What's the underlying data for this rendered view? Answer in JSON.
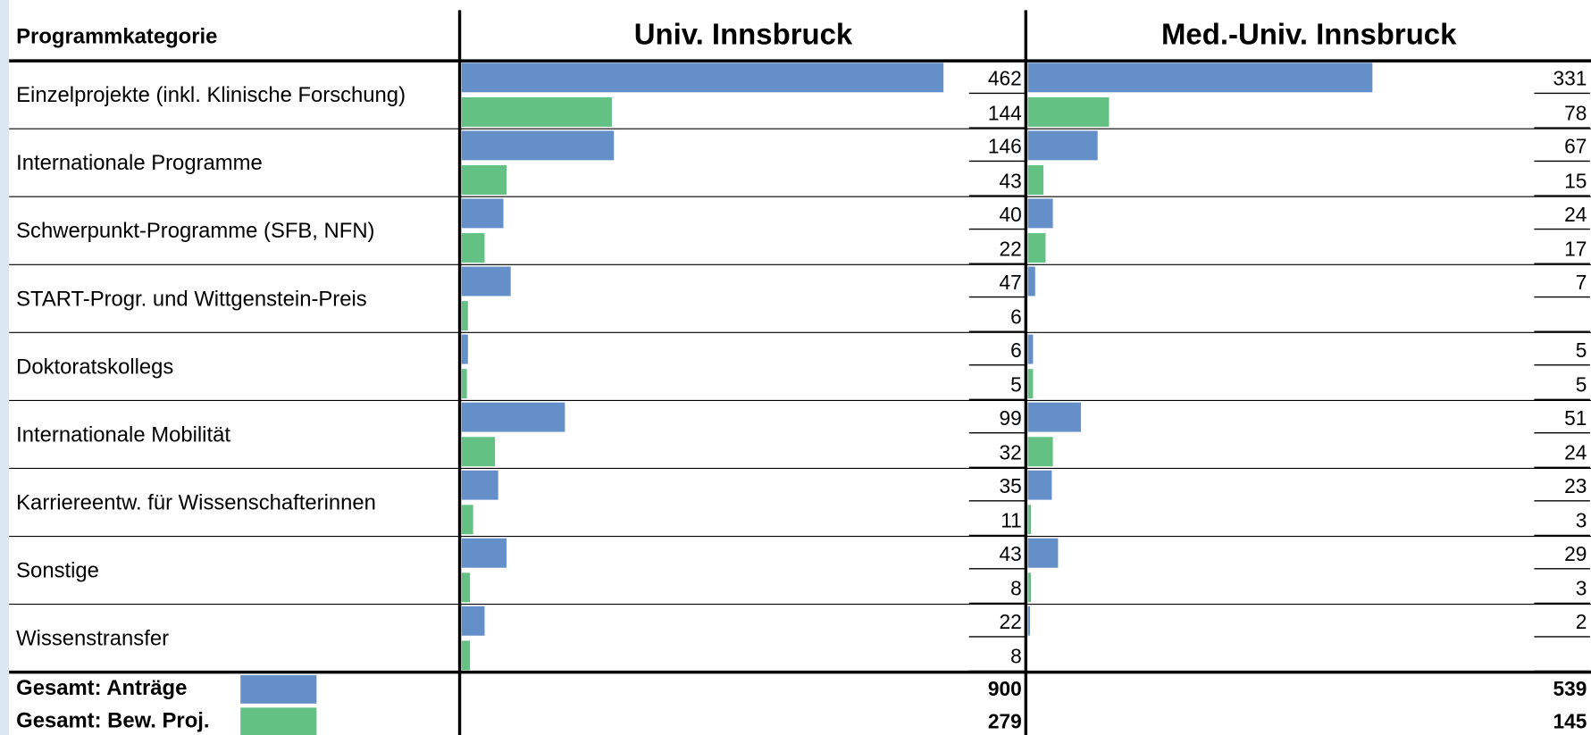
{
  "chart_data": {
    "type": "bar",
    "category_header": "Programmkategorie",
    "categories": [
      "Einzelprojekte (inkl. Klinische Forschung)",
      "Internationale Programme",
      "Schwerpunkt-Programme (SFB, NFN)",
      "START-Progr. und Wittgenstein-Preis",
      "Doktoratskollegs",
      "Internationale Mobilität",
      "Karriereentw. für Wissenschafterinnen",
      "Sonstige",
      "Wissenstransfer"
    ],
    "legend": [
      {
        "name": "Gesamt: Anträge",
        "color": "#658fc9"
      },
      {
        "name": "Gesamt: Bew. Proj.",
        "color": "#63c283"
      }
    ],
    "panels": [
      {
        "title": "Univ. Innsbruck",
        "xlim": [
          0,
          540
        ],
        "series": [
          {
            "values": [
              462,
              146,
              40,
              47,
              6,
              99,
              35,
              43,
              22
            ]
          },
          {
            "values": [
              144,
              43,
              22,
              6,
              5,
              32,
              11,
              8,
              8
            ]
          }
        ],
        "totals": [
          900,
          279
        ]
      },
      {
        "title": "Med.-Univ. Innsbruck",
        "xlim": [
          0,
          540
        ],
        "series": [
          {
            "values": [
              331,
              67,
              24,
              7,
              5,
              51,
              23,
              29,
              2
            ]
          },
          {
            "values": [
              78,
              15,
              17,
              null,
              5,
              24,
              3,
              3,
              null
            ]
          }
        ],
        "totals": [
          539,
          145
        ]
      }
    ]
  }
}
